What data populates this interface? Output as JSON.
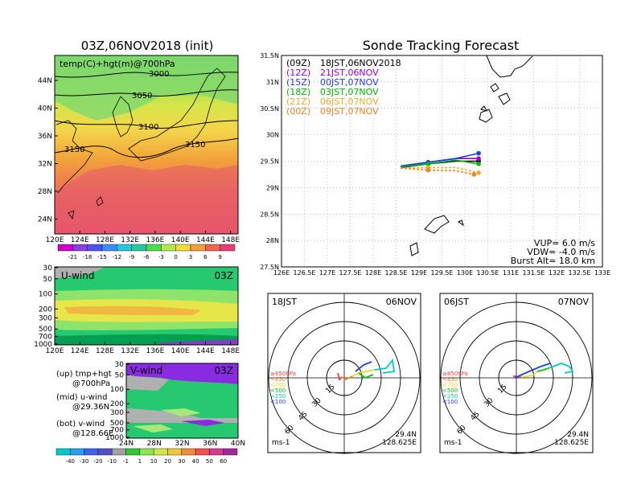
{
  "left": {
    "title": "03Z,06NOV2018 (init)",
    "map": {
      "label": "temp(C)+hgt(m)@700hPa",
      "lat_ticks": [
        "44N",
        "40N",
        "36N",
        "32N",
        "28N",
        "24N"
      ],
      "lon_ticks": [
        "120E",
        "124E",
        "128E",
        "132E",
        "136E",
        "140E",
        "144E",
        "148E"
      ],
      "contour_labels": [
        "3000",
        "3050",
        "3100",
        "3150",
        "3150"
      ]
    },
    "temp_colorbar": [
      "-21",
      "-18",
      "-15",
      "-12",
      "-9",
      "-6",
      "-3",
      "0",
      "3",
      "6",
      "9"
    ],
    "uwind": {
      "label": "U-wind",
      "time": "03Z",
      "p_ticks": [
        "30",
        "50",
        "100",
        "200",
        "300",
        "500",
        "700",
        "1000"
      ],
      "lon_ticks": [
        "120E",
        "124E",
        "128E",
        "132E",
        "136E",
        "140E",
        "144E",
        "148E"
      ]
    },
    "vwind": {
      "label": "V-wind",
      "time": "03Z",
      "p_ticks": [
        "30",
        "50",
        "100",
        "200",
        "300",
        "500",
        "700",
        "1000"
      ],
      "lat_ticks": [
        "24N",
        "28N",
        "32N",
        "36N",
        "40N"
      ]
    },
    "wind_colorbar": [
      "-40",
      "-30",
      "-20",
      "-10",
      "-1",
      "1",
      "10",
      "20",
      "30",
      "40",
      "50",
      "60"
    ],
    "legend_lines": [
      "(up) tmp+hgt",
      "@700hPa",
      "(mid) u-wind",
      "@29.36N",
      "(bot) v-wind",
      "@128.66E"
    ]
  },
  "track": {
    "title": "Sonde Tracking Forecast",
    "lat_ticks": [
      "31.5N",
      "31N",
      "30.5N",
      "30N",
      "29.5N",
      "29N",
      "28.5N",
      "28N",
      "27.5N"
    ],
    "lon_ticks": [
      "126E",
      "126.5E",
      "127E",
      "127.5E",
      "128E",
      "128.5E",
      "129E",
      "129.5E",
      "130E",
      "130.5E",
      "131E",
      "131.5E",
      "132E",
      "132.5E",
      "133E"
    ],
    "legend": [
      {
        "code": "(09Z)",
        "label": "18JST,06NOV2018",
        "color": "#000000"
      },
      {
        "code": "(12Z)",
        "label": "21JST,06NOV",
        "color": "#a000c8"
      },
      {
        "code": "(15Z)",
        "label": "00JST,07NOV",
        "color": "#1e3cff"
      },
      {
        "code": "(18Z)",
        "label": "03JST,07NOV",
        "color": "#00b400"
      },
      {
        "code": "(21Z)",
        "label": "06JST,07NOV",
        "color": "#e6af2d"
      },
      {
        "code": "(00Z)",
        "label": "09JST,07NOV",
        "color": "#f08228"
      }
    ],
    "params": [
      "VUP= 6.0 m/s",
      "VDW= -4.0 m/s",
      "Burst Alt= 18.0 km"
    ]
  },
  "hodo1": {
    "left_label": "18JST",
    "right_label": "06NOV",
    "lat": "29.4N",
    "lon": "128.625E",
    "unit": "ms-1"
  },
  "hodo2": {
    "left_label": "06JST",
    "right_label": "07NOV",
    "lat": "29.4N",
    "lon": "128.625E",
    "unit": "ms-1"
  },
  "hodo_rings": [
    "15",
    "30",
    "45",
    "60"
  ],
  "hodo_legend": [
    {
      "label": "≥850hPa",
      "color": "#ff3c3c"
    },
    {
      "label": "<850",
      "color": "#f08228"
    },
    {
      "label": "<700",
      "color": "#e6dc32"
    },
    {
      "label": "<500",
      "color": "#00c800"
    },
    {
      "label": "<250",
      "color": "#00c8c8"
    },
    {
      "label": "<100",
      "color": "#1e3cff"
    }
  ],
  "chart_data": [
    {
      "type": "line",
      "title": "Sonde Tracking Forecast",
      "xlim": [
        126,
        133
      ],
      "ylim": [
        27.5,
        31.5
      ],
      "series": [
        {
          "name": "(09Z) 18JST,06NOV2018",
          "color": "#000000",
          "x": [
            128.6,
            129.2,
            129.8,
            130.3
          ],
          "y": [
            29.38,
            29.45,
            29.5,
            29.5
          ]
        },
        {
          "name": "(12Z) 21JST,06NOV",
          "color": "#a000c8",
          "x": [
            128.6,
            129.2,
            129.8,
            130.3
          ],
          "y": [
            29.39,
            29.48,
            29.55,
            29.55
          ]
        },
        {
          "name": "(15Z) 00JST,07NOV",
          "color": "#1e3cff",
          "x": [
            128.6,
            129.2,
            129.8,
            130.3
          ],
          "y": [
            29.41,
            29.48,
            29.55,
            29.65
          ]
        },
        {
          "name": "(18Z) 03JST,07NOV",
          "color": "#00b400",
          "x": [
            128.6,
            129.2,
            129.8,
            130.3
          ],
          "y": [
            29.39,
            29.45,
            29.52,
            29.45
          ]
        },
        {
          "name": "(21Z) 06JST,07NOV",
          "color": "#e6af2d",
          "x": [
            128.6,
            129.2,
            129.8,
            130.3
          ],
          "y": [
            29.37,
            29.38,
            29.38,
            29.28
          ]
        },
        {
          "name": "(00Z) 09JST,07NOV",
          "color": "#f08228",
          "x": [
            128.6,
            129.2,
            129.8,
            130.2
          ],
          "y": [
            29.37,
            29.33,
            29.32,
            29.25
          ]
        }
      ]
    }
  ]
}
